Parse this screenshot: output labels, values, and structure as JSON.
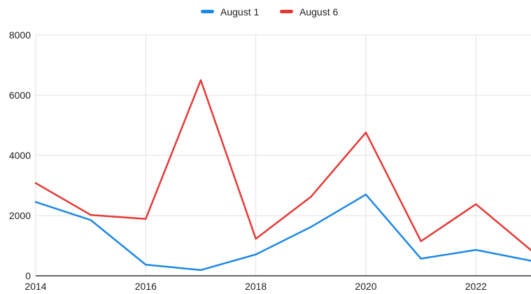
{
  "chart_data": {
    "type": "line",
    "title": "",
    "xlabel": "",
    "ylabel": "",
    "x": [
      2014,
      2015,
      2016,
      2017,
      2018,
      2019,
      2020,
      2021,
      2022,
      2023
    ],
    "xticks": [
      "2014",
      "2016",
      "2018",
      "2020",
      "2022"
    ],
    "yticks": [
      "0",
      "2000",
      "4000",
      "6000",
      "8000"
    ],
    "xlim": [
      2014,
      2023
    ],
    "ylim": [
      0,
      8000
    ],
    "grid": true,
    "legend_position": "top-center",
    "series": [
      {
        "name": "August 1",
        "color": "#1e88e5",
        "values": [
          2450,
          1850,
          370,
          190,
          710,
          1620,
          2700,
          570,
          860,
          500
        ]
      },
      {
        "name": "August 6",
        "color": "#e53935",
        "values": [
          3080,
          2020,
          1890,
          6500,
          1230,
          2620,
          4760,
          1150,
          2380,
          850
        ]
      }
    ]
  }
}
